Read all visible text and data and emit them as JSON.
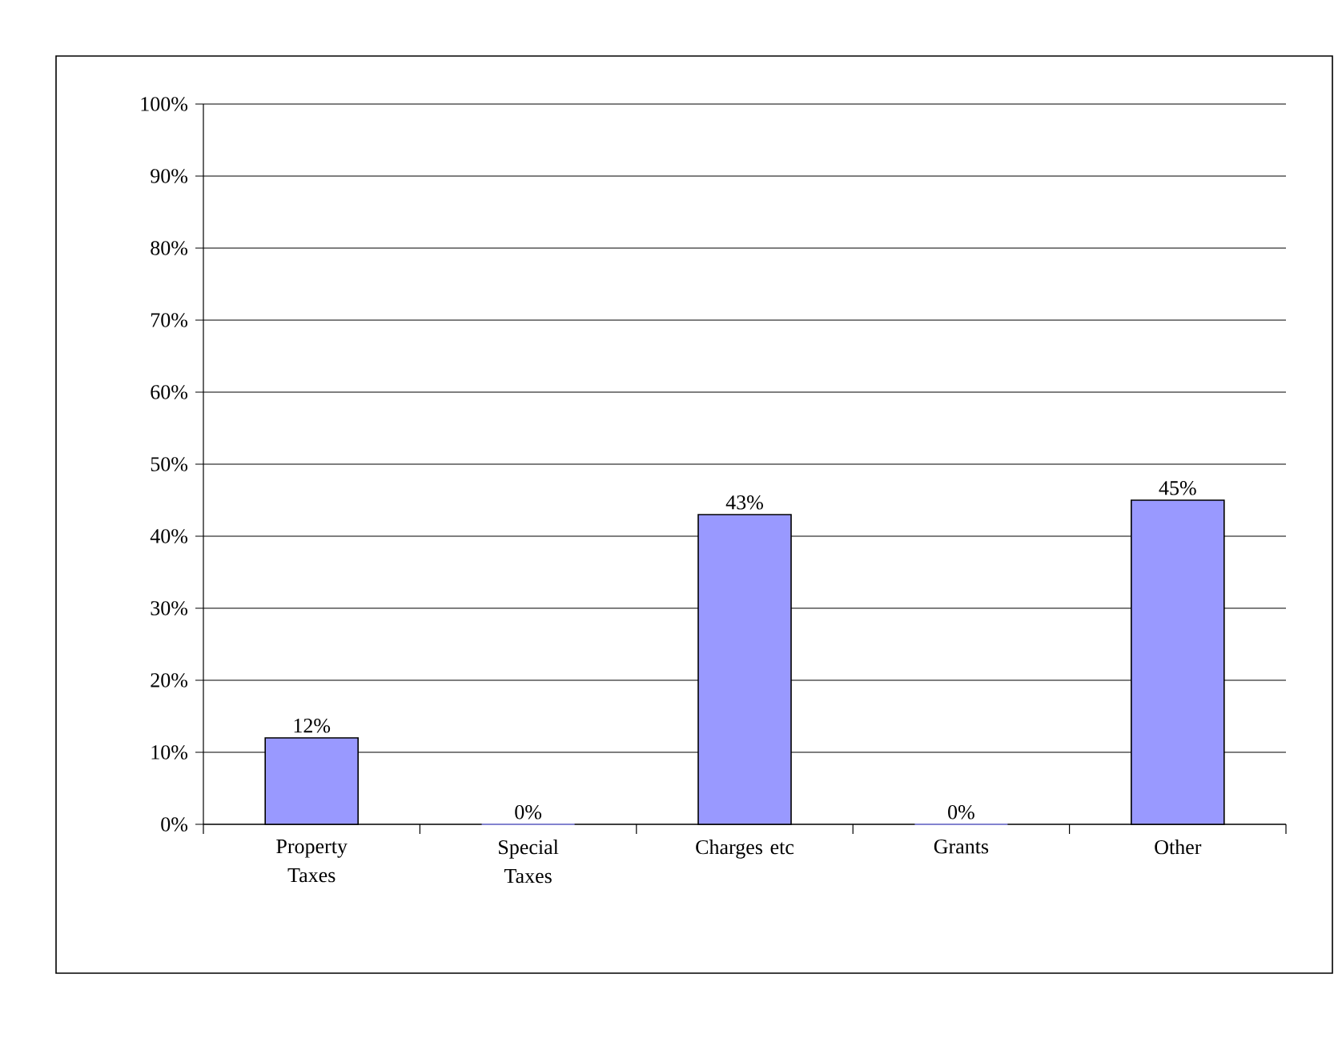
{
  "chart_data": {
    "type": "bar",
    "categories": [
      "Property Taxes",
      "Special Taxes",
      "Charges etc",
      "Grants",
      "Other"
    ],
    "values": [
      12,
      0,
      43,
      0,
      45
    ],
    "value_labels": [
      "12%",
      "0%",
      "43%",
      "0%",
      "45%"
    ],
    "color": "#9999ff",
    "ylim": [
      0,
      100
    ],
    "yticks": [
      {
        "value": 0,
        "label": "0%"
      },
      {
        "value": 10,
        "label": "10%"
      },
      {
        "value": 20,
        "label": "20%"
      },
      {
        "value": 30,
        "label": "30%"
      },
      {
        "value": 40,
        "label": "40%"
      },
      {
        "value": 50,
        "label": "50%"
      },
      {
        "value": 60,
        "label": "60%"
      },
      {
        "value": 70,
        "label": "70%"
      },
      {
        "value": 80,
        "label": "80%"
      },
      {
        "value": 90,
        "label": "90%"
      },
      {
        "value": 100,
        "label": "100%"
      }
    ],
    "grid": "y"
  }
}
